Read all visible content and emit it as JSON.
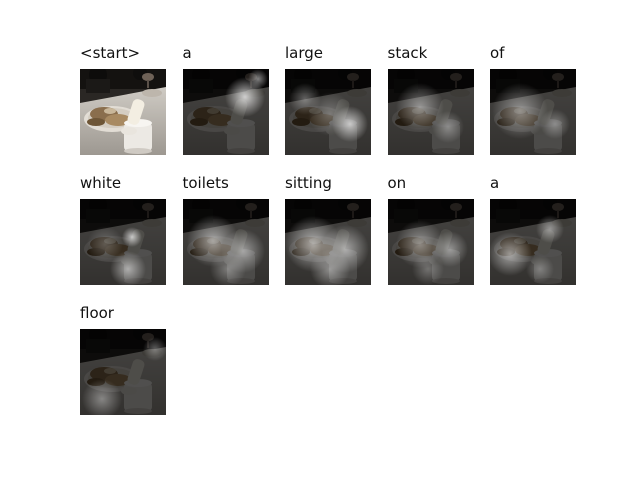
{
  "panels": [
    {
      "word": "<start>",
      "kind": "original"
    },
    {
      "word": "a",
      "kind": "attention",
      "spots": [
        {
          "cx": 62,
          "cy": 28,
          "r": 20,
          "a": 0.75
        },
        {
          "cx": 75,
          "cy": 10,
          "r": 10,
          "a": 0.5
        }
      ]
    },
    {
      "word": "large",
      "kind": "attention",
      "spots": [
        {
          "cx": 65,
          "cy": 55,
          "r": 18,
          "a": 0.7
        },
        {
          "cx": 20,
          "cy": 30,
          "r": 16,
          "a": 0.35
        },
        {
          "cx": 45,
          "cy": 45,
          "r": 22,
          "a": 0.3
        }
      ]
    },
    {
      "word": "stack",
      "kind": "attention",
      "spots": [
        {
          "cx": 32,
          "cy": 38,
          "r": 24,
          "a": 0.45
        },
        {
          "cx": 60,
          "cy": 58,
          "r": 16,
          "a": 0.35
        }
      ]
    },
    {
      "word": "of",
      "kind": "attention",
      "spots": [
        {
          "cx": 30,
          "cy": 42,
          "r": 28,
          "a": 0.45
        },
        {
          "cx": 65,
          "cy": 55,
          "r": 15,
          "a": 0.35
        }
      ]
    },
    {
      "word": "white",
      "kind": "attention",
      "spots": [
        {
          "cx": 52,
          "cy": 38,
          "r": 10,
          "a": 0.7
        },
        {
          "cx": 48,
          "cy": 70,
          "r": 18,
          "a": 0.55
        },
        {
          "cx": 25,
          "cy": 45,
          "r": 18,
          "a": 0.25
        }
      ]
    },
    {
      "word": "toilets",
      "kind": "attention",
      "spots": [
        {
          "cx": 30,
          "cy": 42,
          "r": 26,
          "a": 0.55
        },
        {
          "cx": 60,
          "cy": 52,
          "r": 22,
          "a": 0.5
        },
        {
          "cx": 45,
          "cy": 70,
          "r": 18,
          "a": 0.35
        }
      ]
    },
    {
      "word": "sitting",
      "kind": "attention",
      "spots": [
        {
          "cx": 28,
          "cy": 45,
          "r": 28,
          "a": 0.6
        },
        {
          "cx": 60,
          "cy": 50,
          "r": 24,
          "a": 0.55
        },
        {
          "cx": 45,
          "cy": 70,
          "r": 20,
          "a": 0.45
        }
      ]
    },
    {
      "word": "on",
      "kind": "attention",
      "spots": [
        {
          "cx": 32,
          "cy": 45,
          "r": 24,
          "a": 0.45
        },
        {
          "cx": 62,
          "cy": 50,
          "r": 18,
          "a": 0.45
        },
        {
          "cx": 40,
          "cy": 70,
          "r": 16,
          "a": 0.3
        }
      ]
    },
    {
      "word": "a",
      "kind": "attention",
      "spots": [
        {
          "cx": 20,
          "cy": 55,
          "r": 22,
          "a": 0.55
        },
        {
          "cx": 60,
          "cy": 30,
          "r": 14,
          "a": 0.45
        },
        {
          "cx": 50,
          "cy": 70,
          "r": 14,
          "a": 0.3
        }
      ]
    },
    {
      "word": "floor",
      "kind": "attention",
      "spots": [
        {
          "cx": 22,
          "cy": 70,
          "r": 20,
          "a": 0.4
        },
        {
          "cx": 75,
          "cy": 20,
          "r": 12,
          "a": 0.35
        }
      ]
    }
  ]
}
